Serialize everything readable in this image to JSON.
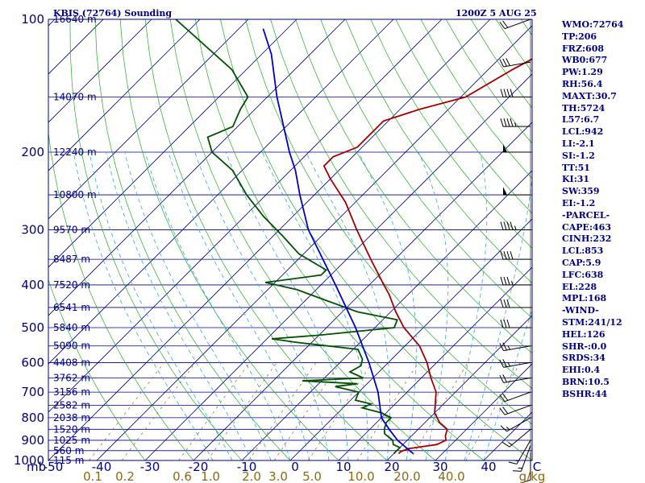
{
  "header": {
    "station": "KBIS (72764) Sounding",
    "time": "1200Z  5 AUG 25"
  },
  "chart_data": {
    "type": "line",
    "diagram": "skew-t log-p",
    "y_axis": {
      "unit_label": "mb",
      "pressure_ticks": [
        100,
        200,
        300,
        400,
        500,
        600,
        700,
        800,
        900,
        1000
      ],
      "ylim": [
        1000,
        100
      ],
      "scale": "log"
    },
    "x_axis": {
      "temperature_ticks": [
        "-50",
        "-40",
        "-30",
        "-20",
        "-10",
        "0",
        "10",
        "20",
        "30",
        "40",
        "C"
      ],
      "xlim": [
        -50,
        50
      ]
    },
    "mixing_ratio_labels": [
      "0.1",
      "0.2",
      "0.6",
      "1.0",
      "2.0",
      "3.0",
      "5.0",
      "10.0",
      "20.0",
      "40.0",
      "g/kg"
    ],
    "height_labels": [
      {
        "p": 100,
        "text": "16640 m"
      },
      {
        "p": 150,
        "text": "14070 m"
      },
      {
        "p": 200,
        "text": "12240 m"
      },
      {
        "p": 250,
        "text": "10800 m"
      },
      {
        "p": 300,
        "text": "9570 m"
      },
      {
        "p": 350,
        "text": "8487 m"
      },
      {
        "p": 400,
        "text": "7520 m"
      },
      {
        "p": 450,
        "text": "6541 m"
      },
      {
        "p": 500,
        "text": "5840 m"
      },
      {
        "p": 550,
        "text": "5090 m"
      },
      {
        "p": 600,
        "text": "4408 m"
      },
      {
        "p": 650,
        "text": "3762 m"
      },
      {
        "p": 700,
        "text": "3156 m"
      },
      {
        "p": 750,
        "text": "2582 m"
      },
      {
        "p": 800,
        "text": "2038 m"
      },
      {
        "p": 850,
        "text": "1520 m"
      },
      {
        "p": 900,
        "text": "1025 m"
      },
      {
        "p": 950,
        "text": "560 m"
      },
      {
        "p": 1000,
        "text": "115 m"
      }
    ],
    "series": [
      {
        "points": [
          {
            "p": 965,
            "t": 21
          },
          {
            "p": 955,
            "t": 21
          },
          {
            "p": 940,
            "t": 22
          },
          {
            "p": 920,
            "t": 27
          },
          {
            "p": 900,
            "t": 28
          },
          {
            "p": 880,
            "t": 27
          },
          {
            "p": 850,
            "t": 26
          },
          {
            "p": 820,
            "t": 23
          },
          {
            "p": 780,
            "t": 20
          },
          {
            "p": 700,
            "t": 16
          },
          {
            "p": 650,
            "t": 12
          },
          {
            "p": 600,
            "t": 8
          },
          {
            "p": 550,
            "t": 3
          },
          {
            "p": 500,
            "t": -4
          },
          {
            "p": 460,
            "t": -9
          },
          {
            "p": 420,
            "t": -14
          },
          {
            "p": 400,
            "t": -17
          },
          {
            "p": 350,
            "t": -25
          },
          {
            "p": 300,
            "t": -34
          },
          {
            "p": 260,
            "t": -42
          },
          {
            "p": 230,
            "t": -50
          },
          {
            "p": 215,
            "t": -54
          },
          {
            "p": 205,
            "t": -54
          },
          {
            "p": 195,
            "t": -51
          },
          {
            "p": 185,
            "t": -51
          },
          {
            "p": 170,
            "t": -51
          },
          {
            "p": 160,
            "t": -46
          },
          {
            "p": 150,
            "t": -39
          },
          {
            "p": 130,
            "t": -35
          },
          {
            "p": 100,
            "t": -26
          }
        ]
      },
      {
        "points": [
          {
            "p": 965,
            "t": 20
          },
          {
            "p": 950,
            "t": 20
          },
          {
            "p": 935,
            "t": 20
          },
          {
            "p": 920,
            "t": 18
          },
          {
            "p": 900,
            "t": 17
          },
          {
            "p": 870,
            "t": 14
          },
          {
            "p": 850,
            "t": 13
          },
          {
            "p": 820,
            "t": 12
          },
          {
            "p": 800,
            "t": 12
          },
          {
            "p": 780,
            "t": 9
          },
          {
            "p": 760,
            "t": 4
          },
          {
            "p": 745,
            "t": 5
          },
          {
            "p": 730,
            "t": 1
          },
          {
            "p": 700,
            "t": 0
          },
          {
            "p": 680,
            "t": -6
          },
          {
            "p": 670,
            "t": -2
          },
          {
            "p": 660,
            "t": -14
          },
          {
            "p": 650,
            "t": -2
          },
          {
            "p": 630,
            "t": -6
          },
          {
            "p": 610,
            "t": -5
          },
          {
            "p": 590,
            "t": -6
          },
          {
            "p": 560,
            "t": -9
          },
          {
            "p": 540,
            "t": -23
          },
          {
            "p": 530,
            "t": -29
          },
          {
            "p": 520,
            "t": -20
          },
          {
            "p": 500,
            "t": -6
          },
          {
            "p": 480,
            "t": -7
          },
          {
            "p": 460,
            "t": -17
          },
          {
            "p": 430,
            "t": -27
          },
          {
            "p": 410,
            "t": -34
          },
          {
            "p": 395,
            "t": -42
          },
          {
            "p": 380,
            "t": -32
          },
          {
            "p": 370,
            "t": -32
          },
          {
            "p": 340,
            "t": -41
          },
          {
            "p": 310,
            "t": -48
          },
          {
            "p": 280,
            "t": -56
          },
          {
            "p": 250,
            "t": -64
          },
          {
            "p": 220,
            "t": -72
          },
          {
            "p": 200,
            "t": -80
          },
          {
            "p": 185,
            "t": -84
          },
          {
            "p": 175,
            "t": -81
          },
          {
            "p": 160,
            "t": -83
          },
          {
            "p": 150,
            "t": -84
          },
          {
            "p": 130,
            "t": -93
          },
          {
            "p": 100,
            "t": -115
          }
        ]
      },
      {
        "points": [
          {
            "p": 965,
            "t": 24
          },
          {
            "p": 900,
            "t": 18
          },
          {
            "p": 850,
            "t": 14
          },
          {
            "p": 800,
            "t": 10
          },
          {
            "p": 700,
            "t": 4
          },
          {
            "p": 600,
            "t": -4
          },
          {
            "p": 500,
            "t": -14
          },
          {
            "p": 400,
            "t": -27
          },
          {
            "p": 300,
            "t": -44
          },
          {
            "p": 250,
            "t": -53
          },
          {
            "p": 220,
            "t": -59
          },
          {
            "p": 200,
            "t": -64
          },
          {
            "p": 150,
            "t": -78
          },
          {
            "p": 120,
            "t": -88
          },
          {
            "p": 105,
            "t": -95
          }
        ]
      }
    ],
    "colors": {
      "temperature": "#a00000",
      "dewpoint": "#005000",
      "parcel": "#0000c0",
      "isobar": "#000080",
      "isotherm": "#000080",
      "dry_adiabat": "#22aa22",
      "moist_adiabat": "#33aacc",
      "mixing_ratio": "#8b6914",
      "wind_barb": "#000000"
    },
    "grid": true
  },
  "indices": [
    "WMO:72764",
    "TP:206",
    "FRZ:608",
    "WB0:677",
    "PW:1.29",
    "RH:56.4",
    "MAXT:30.7",
    "TH:5724",
    "L57:6.7",
    "LCL:942",
    "LI:-2.1",
    "SI:-1.2",
    "TT:51",
    "KI:31",
    "SW:359",
    "EI:-1.2",
    "-PARCEL-",
    "CAPE:463",
    "CINH:232",
    "LCL:853",
    "CAP:5.9",
    "LFC:638",
    "EL:228",
    "MPL:168",
    "-WIND-",
    "STM:241/12",
    "HEL:126",
    "SHR-:0.0",
    "SRDS:34",
    "EHI:0.4",
    "BRN:10.5",
    "BSHR:44"
  ],
  "winds": [
    {
      "p": 960,
      "dir": 180,
      "spd": 10
    },
    {
      "p": 925,
      "dir": 200,
      "spd": 15
    },
    {
      "p": 900,
      "dir": 210,
      "spd": 15
    },
    {
      "p": 850,
      "dir": 230,
      "spd": 15
    },
    {
      "p": 800,
      "dir": 240,
      "spd": 15
    },
    {
      "p": 750,
      "dir": 250,
      "spd": 20
    },
    {
      "p": 700,
      "dir": 250,
      "spd": 20
    },
    {
      "p": 650,
      "dir": 260,
      "spd": 20
    },
    {
      "p": 600,
      "dir": 260,
      "spd": 25
    },
    {
      "p": 550,
      "dir": 260,
      "spd": 25
    },
    {
      "p": 500,
      "dir": 270,
      "spd": 30
    },
    {
      "p": 450,
      "dir": 270,
      "spd": 30
    },
    {
      "p": 400,
      "dir": 270,
      "spd": 35
    },
    {
      "p": 350,
      "dir": 270,
      "spd": 40
    },
    {
      "p": 300,
      "dir": 270,
      "spd": 45
    },
    {
      "p": 250,
      "dir": 270,
      "spd": 50
    },
    {
      "p": 200,
      "dir": 270,
      "spd": 50
    },
    {
      "p": 175,
      "dir": 270,
      "spd": 45
    },
    {
      "p": 150,
      "dir": 270,
      "spd": 40
    },
    {
      "p": 125,
      "dir": 260,
      "spd": 30
    },
    {
      "p": 100,
      "dir": 250,
      "spd": 20
    }
  ]
}
